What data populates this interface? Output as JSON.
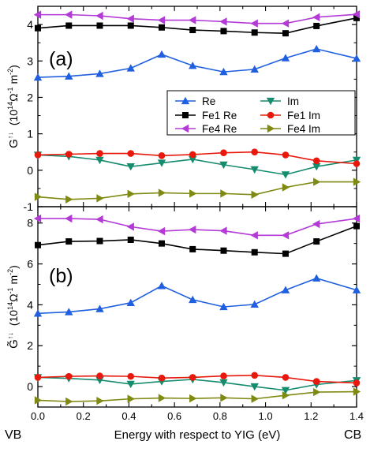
{
  "chart_data": [
    {
      "type": "line",
      "panel_label": "(a)",
      "ylabel_symbol": "G",
      "ylabel_sup": "↑↓",
      "ylabel_unit_prefix": "(10",
      "ylabel_unit_exp1": "14",
      "ylabel_unit_mid": "Ω",
      "ylabel_unit_exp2": "-1",
      "ylabel_unit_mid2": " m",
      "ylabel_unit_exp3": "-2",
      "ylabel_unit_suffix": ")",
      "xlim": [
        0,
        1.4
      ],
      "ylim": [
        -1,
        4.5
      ],
      "yticks": [
        -1,
        0,
        1,
        2,
        3,
        4
      ],
      "legend_position": "inside-right",
      "x": [
        0.0,
        0.136,
        0.272,
        0.408,
        0.544,
        0.68,
        0.816,
        0.952,
        1.088,
        1.224,
        1.4
      ],
      "series": [
        {
          "name": "Re",
          "color": "#1f5fe0",
          "marker": "triangle-up",
          "values": [
            2.55,
            2.58,
            2.65,
            2.8,
            3.18,
            2.87,
            2.7,
            2.77,
            3.08,
            3.33,
            3.07
          ]
        },
        {
          "name": "Im",
          "color": "#168c6e",
          "marker": "triangle-down",
          "values": [
            0.42,
            0.38,
            0.28,
            0.1,
            0.2,
            0.3,
            0.15,
            0.02,
            -0.12,
            0.1,
            0.28
          ]
        },
        {
          "name": "Fe1 Re",
          "color": "#000000",
          "marker": "square",
          "values": [
            3.9,
            3.97,
            3.97,
            3.97,
            3.92,
            3.85,
            3.82,
            3.78,
            3.76,
            3.96,
            4.18
          ]
        },
        {
          "name": "Fe1 Im",
          "color": "#e8180c",
          "marker": "circle",
          "values": [
            0.42,
            0.44,
            0.46,
            0.46,
            0.4,
            0.43,
            0.48,
            0.5,
            0.42,
            0.26,
            0.18
          ]
        },
        {
          "name": "Fe4 Re",
          "color": "#b33ad6",
          "marker": "triangle-left",
          "values": [
            4.27,
            4.27,
            4.24,
            4.16,
            4.12,
            4.12,
            4.08,
            4.03,
            4.03,
            4.2,
            4.28
          ]
        },
        {
          "name": "Fe4 Im",
          "color": "#7e8a12",
          "marker": "triangle-right",
          "values": [
            -0.73,
            -0.8,
            -0.77,
            -0.65,
            -0.62,
            -0.64,
            -0.64,
            -0.67,
            -0.47,
            -0.32,
            -0.32
          ]
        }
      ]
    },
    {
      "type": "line",
      "panel_label": "(b)",
      "ylabel_symbol": "G̃",
      "ylabel_sup": "↑↓",
      "ylabel_unit_prefix": "(10",
      "ylabel_unit_exp1": "14",
      "ylabel_unit_mid": "Ω",
      "ylabel_unit_exp2": "-1",
      "ylabel_unit_mid2": " m",
      "ylabel_unit_exp3": "-2",
      "ylabel_unit_suffix": ")",
      "xlabel": "Energy with respect to YIG (eV)",
      "x_left_label": "VB",
      "x_right_label": "CB",
      "xlim": [
        0,
        1.4
      ],
      "ylim": [
        -1,
        8.8
      ],
      "yticks": [
        0,
        2,
        4,
        6,
        8
      ],
      "xticks": [
        "0.0",
        "0.2",
        "0.4",
        "0.6",
        "0.8",
        "1.0",
        "1.2",
        "1.4"
      ],
      "x": [
        0.0,
        0.136,
        0.272,
        0.408,
        0.544,
        0.68,
        0.816,
        0.952,
        1.088,
        1.224,
        1.4
      ],
      "series": [
        {
          "name": "Re",
          "color": "#1f5fe0",
          "marker": "triangle-up",
          "values": [
            3.58,
            3.65,
            3.8,
            4.1,
            4.93,
            4.25,
            3.9,
            4.02,
            4.72,
            5.3,
            4.72
          ]
        },
        {
          "name": "Im",
          "color": "#168c6e",
          "marker": "triangle-down",
          "values": [
            0.45,
            0.4,
            0.32,
            0.12,
            0.25,
            0.35,
            0.2,
            0.0,
            -0.18,
            0.1,
            0.3
          ]
        },
        {
          "name": "Fe1 Re",
          "color": "#000000",
          "marker": "square",
          "values": [
            6.92,
            7.1,
            7.12,
            7.18,
            7.0,
            6.72,
            6.65,
            6.57,
            6.5,
            7.1,
            7.85
          ]
        },
        {
          "name": "Fe1 Im",
          "color": "#e8180c",
          "marker": "circle",
          "values": [
            0.45,
            0.5,
            0.52,
            0.5,
            0.42,
            0.45,
            0.52,
            0.55,
            0.45,
            0.25,
            0.18
          ]
        },
        {
          "name": "Fe4 Re",
          "color": "#b33ad6",
          "marker": "triangle-left",
          "values": [
            8.22,
            8.22,
            8.18,
            7.82,
            7.6,
            7.68,
            7.62,
            7.4,
            7.4,
            7.95,
            8.22
          ]
        },
        {
          "name": "Fe4 Im",
          "color": "#7e8a12",
          "marker": "triangle-right",
          "values": [
            -0.67,
            -0.73,
            -0.7,
            -0.6,
            -0.56,
            -0.58,
            -0.55,
            -0.6,
            -0.43,
            -0.27,
            -0.25
          ]
        }
      ]
    }
  ]
}
